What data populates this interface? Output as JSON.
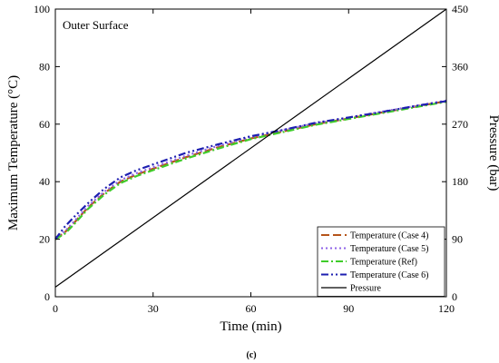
{
  "chart_data": {
    "type": "line",
    "annotation": "Outer Surface",
    "caption": "(c)",
    "xlabel": "Time (min)",
    "ylabel": "Maximum Temperature (°C)",
    "y2label": "Pressure (bar)",
    "xlim": [
      0,
      120
    ],
    "ylim": [
      0,
      100
    ],
    "y2lim": [
      0,
      450
    ],
    "xticks": [
      "0",
      "30",
      "60",
      "90",
      "120"
    ],
    "yticks": [
      "0",
      "20",
      "40",
      "60",
      "80",
      "100"
    ],
    "y2ticks": [
      "0",
      "90",
      "180",
      "270",
      "360",
      "450"
    ],
    "grid": false,
    "legend_position": "bottom-right",
    "series": [
      {
        "name": "Temperature (Case 4)",
        "axis": "left",
        "color": "#b5541a",
        "dash": "long-dash",
        "x": [
          0,
          3,
          6,
          10,
          15,
          20,
          25,
          30,
          40,
          50,
          60,
          70,
          80,
          90,
          100,
          110,
          120
        ],
        "y": [
          20,
          22.5,
          26,
          31,
          36,
          40,
          42.5,
          44.5,
          48.5,
          52,
          55,
          57.5,
          60,
          62,
          64,
          66,
          68
        ]
      },
      {
        "name": "Temperature (Case 5)",
        "axis": "left",
        "color": "#8f63e8",
        "dash": "dot",
        "x": [
          0,
          3,
          6,
          10,
          15,
          20,
          25,
          30,
          40,
          50,
          60,
          70,
          80,
          90,
          100,
          110,
          120
        ],
        "y": [
          20.5,
          22.8,
          26.5,
          31.5,
          36.5,
          40.5,
          43,
          45,
          49,
          52.5,
          55.5,
          58,
          60.3,
          62.3,
          64.3,
          66.2,
          68.2
        ]
      },
      {
        "name": "Temperature (Ref)",
        "axis": "left",
        "color": "#3fcc2a",
        "dash": "dash-dot",
        "x": [
          0,
          3,
          6,
          10,
          15,
          20,
          25,
          30,
          40,
          50,
          60,
          70,
          80,
          90,
          100,
          110,
          120
        ],
        "y": [
          20,
          22,
          25.5,
          30.5,
          35.5,
          39.5,
          42,
          44,
          48,
          51.5,
          54.8,
          57.3,
          59.8,
          61.8,
          63.8,
          65.8,
          67.8
        ]
      },
      {
        "name": "Temperature (Case 6)",
        "axis": "left",
        "color": "#1d1fb0",
        "dash": "dash-dot-dot",
        "x": [
          0,
          3,
          6,
          10,
          15,
          20,
          25,
          30,
          40,
          50,
          60,
          70,
          80,
          90,
          100,
          110,
          120
        ],
        "y": [
          20,
          24.5,
          28,
          32.5,
          37.5,
          41.5,
          44,
          46,
          50,
          53,
          55.8,
          58,
          60.5,
          62.3,
          64.2,
          66.2,
          68
        ]
      },
      {
        "name": "Pressure",
        "axis": "right",
        "color": "#000000",
        "dash": "solid",
        "x": [
          0,
          120
        ],
        "y": [
          15,
          450
        ]
      }
    ]
  }
}
